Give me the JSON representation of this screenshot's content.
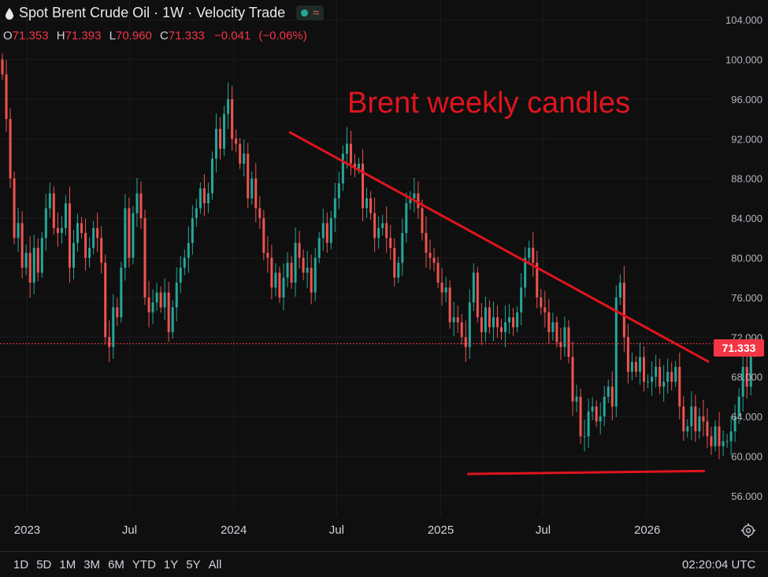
{
  "header": {
    "title": "Spot Brent Crude Oil · 1W · Velocity Trade",
    "icon": "oil-drop-icon",
    "status_dot_color": "#26a69a",
    "indicator_icon": "wave-icon"
  },
  "ohlc": {
    "open_label": "O",
    "open": "71.353",
    "high_label": "H",
    "high": "71.393",
    "low_label": "L",
    "low": "70.960",
    "close_label": "C",
    "close": "71.333",
    "change": "−0.041",
    "change_pct": "(−0.06%)"
  },
  "annotation": "Brent weekly candles",
  "current_price": "71.333",
  "bottom": {
    "ranges": [
      "1D",
      "5D",
      "1M",
      "3M",
      "6M",
      "YTD",
      "1Y",
      "5Y",
      "All"
    ],
    "clock": "02:20:04 UTC"
  },
  "colors": {
    "up": "#26a69a",
    "down": "#ef5350",
    "trendline": "#e0141e",
    "background": "#0f0f0f",
    "grid": "#1c1c1c"
  },
  "chart_data": {
    "type": "candlestick",
    "title": "Spot Brent Crude Oil · 1W · Velocity Trade",
    "ylim": [
      54,
      106
    ],
    "yticks": [
      "104.000",
      "100.000",
      "96.000",
      "92.000",
      "88.000",
      "84.000",
      "80.000",
      "76.000",
      "72.000",
      "68.000",
      "64.000",
      "60.000",
      "56.000"
    ],
    "ytick_values": [
      104,
      100,
      96,
      92,
      88,
      84,
      80,
      76,
      72,
      68,
      64,
      60,
      56
    ],
    "x_start": "2022-11-14",
    "x_end": "2026-04-27",
    "xticks": [
      {
        "label": "2023",
        "date": "2023-01-01"
      },
      {
        "label": "Jul",
        "date": "2023-07-01"
      },
      {
        "label": "2024",
        "date": "2024-01-01"
      },
      {
        "label": "Jul",
        "date": "2024-07-01"
      },
      {
        "label": "2025",
        "date": "2025-01-01"
      },
      {
        "label": "Jul",
        "date": "2025-07-01"
      },
      {
        "label": "2026",
        "date": "2026-01-01"
      }
    ],
    "closes": [
      98.5,
      94,
      88,
      82,
      83.5,
      79,
      80.5,
      77.5,
      81,
      78.5,
      82,
      85,
      86.5,
      83,
      82.5,
      83,
      85.5,
      79,
      81.5,
      83.5,
      82.5,
      80,
      81,
      83,
      82,
      79.5,
      72,
      71,
      75,
      74,
      79,
      85,
      80,
      84.5,
      86.5,
      84,
      76,
      74.5,
      75.5,
      76.5,
      75,
      76.5,
      72.5,
      75,
      77.5,
      79,
      80,
      81.5,
      84,
      85,
      87,
      85.5,
      86.5,
      90,
      93,
      91,
      94.5,
      96,
      92,
      91.5,
      89.5,
      90.5,
      86,
      88,
      85,
      84,
      80.5,
      80,
      77,
      78.5,
      76,
      78,
      79.5,
      77.5,
      81.5,
      80,
      78.5,
      79,
      76.5,
      80,
      82,
      83.5,
      81.5,
      84,
      86,
      87.5,
      90.5,
      91.5,
      89.5,
      89,
      89.5,
      85,
      86,
      84.5,
      82,
      83,
      83.5,
      82,
      81,
      78,
      79.5,
      82.5,
      85.5,
      86,
      86.5,
      85,
      82.5,
      80.5,
      80,
      79.5,
      77.5,
      76.5,
      77,
      73.5,
      74,
      73.5,
      72,
      71,
      75.5,
      78.5,
      74,
      72.5,
      75,
      73,
      74,
      73,
      72.5,
      73.5,
      74,
      73,
      74.5,
      77,
      80,
      81,
      79.5,
      76,
      75,
      74.5,
      72.5,
      73.5,
      71.5,
      71,
      73,
      70,
      65.5,
      66,
      62,
      62,
      64.5,
      65,
      63.5,
      64,
      66,
      67,
      65,
      76,
      77.5,
      72,
      68.5,
      69.5,
      68.5,
      70,
      67.5,
      67.5,
      68,
      69,
      67,
      67.5,
      68.5,
      67.5,
      69,
      65,
      62.5,
      63,
      65,
      62.5,
      64,
      63.5,
      62,
      61,
      63,
      61,
      61.5,
      61.5,
      62.5,
      64,
      66,
      69,
      67,
      70.5,
      71.333
    ],
    "current_price": 71.333,
    "resistance_line": {
      "from": {
        "date": "2024-04-08",
        "value": 92.7
      },
      "to": {
        "date": "2026-04-20",
        "value": 69.5
      }
    },
    "support_line": {
      "from": {
        "date": "2025-02-17",
        "value": 58.2
      },
      "to": {
        "date": "2026-04-13",
        "value": 58.5
      }
    }
  }
}
